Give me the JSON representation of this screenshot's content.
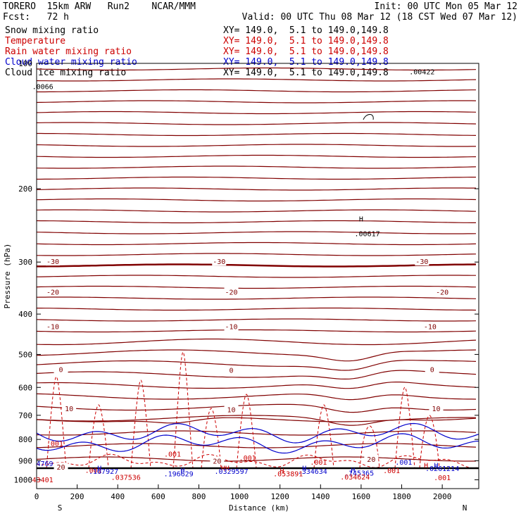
{
  "header": {
    "model": "TORERO  15km ARW   Run2    NCAR/MMM",
    "init": "Init: 00 UTC Mon 05 Mar 12",
    "fcst": "Fcst:   72 h",
    "valid": "Valid: 00 UTC Thu 08 Mar 12 (18 CST Wed 07 Mar 12)"
  },
  "legend": [
    {
      "name": "Snow mixing ratio",
      "xy": "XY= 149.0,  5.1 to 149.0,149.8",
      "color": "#000000"
    },
    {
      "name": "Temperature",
      "xy": "XY= 149.0,  5.1 to 149.0,149.8",
      "color": "#cc0000"
    },
    {
      "name": "Rain water mixing ratio",
      "xy": "XY= 149.0,  5.1 to 149.0,149.8",
      "color": "#cc0000"
    },
    {
      "name": "Cloud water mixing ratio",
      "xy": "XY= 149.0,  5.1 to 149.0,149.8",
      "color": "#0000cc"
    },
    {
      "name": "Cloud ice mixing ratio",
      "xy": "XY= 149.0,  5.1 to 149.0,149.8",
      "color": "#000000"
    }
  ],
  "chart_data": {
    "type": "contour",
    "xlabel": "Distance (km)",
    "ylabel": "Pressure (hPa)",
    "xlim": [
      0,
      2180
    ],
    "ylim": [
      100,
      1050
    ],
    "y_scale": "log",
    "x_ticks": [
      0,
      200,
      400,
      600,
      800,
      1000,
      1200,
      1400,
      1600,
      1800,
      2000
    ],
    "y_ticks": [
      100,
      200,
      300,
      400,
      500,
      600,
      700,
      800,
      900,
      1000
    ],
    "x_end_labels": {
      "left": "S",
      "right": "N"
    },
    "temperature_labels": [
      {
        "text": "-30",
        "x": 80,
        "p": 300
      },
      {
        "text": "-30",
        "x": 900,
        "p": 300
      },
      {
        "text": "-30",
        "x": 1900,
        "p": 300
      },
      {
        "text": "-20",
        "x": 80,
        "p": 355
      },
      {
        "text": "-20",
        "x": 960,
        "p": 355
      },
      {
        "text": "-20",
        "x": 2000,
        "p": 355
      },
      {
        "text": "-10",
        "x": 80,
        "p": 430
      },
      {
        "text": "-10",
        "x": 960,
        "p": 430
      },
      {
        "text": "-10",
        "x": 1940,
        "p": 430
      },
      {
        "text": "0",
        "x": 120,
        "p": 545
      },
      {
        "text": "0",
        "x": 960,
        "p": 547
      },
      {
        "text": "0",
        "x": 1950,
        "p": 545
      },
      {
        "text": "10",
        "x": 160,
        "p": 676
      },
      {
        "text": "10",
        "x": 960,
        "p": 680
      },
      {
        "text": "10",
        "x": 1970,
        "p": 676
      },
      {
        "text": "20",
        "x": 120,
        "p": 935
      },
      {
        "text": "20",
        "x": 890,
        "p": 903
      },
      {
        "text": "20",
        "x": 1650,
        "p": 895
      }
    ],
    "extrema_labels": [
      {
        "text": ".00422",
        "x": 1900,
        "p": 105,
        "color": "#000000"
      },
      {
        "text": ".0066",
        "x": 30,
        "p": 114,
        "color": "#000000"
      },
      {
        "text": "H",
        "x": 1600,
        "p": 237,
        "color": "#000000"
      },
      {
        "text": ".00617",
        "x": 1630,
        "p": 257,
        "color": "#000000"
      },
      {
        "text": ".001",
        "x": 90,
        "p": 820,
        "color": "#cc0000"
      },
      {
        "text": ".001",
        "x": 670,
        "p": 870,
        "color": "#cc0000"
      },
      {
        "text": ".001",
        "x": 1040,
        "p": 888,
        "color": "#cc0000"
      },
      {
        "text": ".001",
        "x": 1390,
        "p": 910,
        "color": "#cc0000"
      },
      {
        "text": ".001",
        "x": 1810,
        "p": 910,
        "color": "#0000cc"
      },
      {
        "text": ".001",
        "x": 280,
        "p": 950,
        "color": "#cc0000"
      },
      {
        "text": ".001",
        "x": 1750,
        "p": 952,
        "color": "#cc0000"
      },
      {
        "text": ".001",
        "x": 2000,
        "p": 990,
        "color": "#cc0000"
      },
      {
        "text": "4769",
        "x": 40,
        "p": 916,
        "color": "#0000cc"
      },
      {
        "text": "H",
        "x": 310,
        "p": 940,
        "color": "#0000cc"
      },
      {
        "text": ".167927",
        "x": 330,
        "p": 957,
        "color": "#0000cc"
      },
      {
        "text": ".037536",
        "x": 440,
        "p": 988,
        "color": "#cc0000"
      },
      {
        "text": "H",
        "x": 720,
        "p": 950,
        "color": "#0000cc"
      },
      {
        "text": ".196629",
        "x": 700,
        "p": 969,
        "color": "#0000cc"
      },
      {
        "text": "HH",
        "x": 930,
        "p": 940,
        "color": "#cc0000"
      },
      {
        "text": ".0329597",
        "x": 960,
        "p": 957,
        "color": "#0000cc"
      },
      {
        "text": "H",
        "x": 1210,
        "p": 955,
        "color": "#cc0000"
      },
      {
        "text": ".053891",
        "x": 1240,
        "p": 970,
        "color": "#cc0000"
      },
      {
        "text": "H",
        "x": 1320,
        "p": 940,
        "color": "#0000cc"
      },
      {
        "text": ".334634",
        "x": 1360,
        "p": 957,
        "color": "#0000cc"
      },
      {
        "text": "H",
        "x": 1560,
        "p": 950,
        "color": "#0000cc"
      },
      {
        "text": ".145365",
        "x": 1590,
        "p": 966,
        "color": "#0000cc"
      },
      {
        "text": ".034624",
        "x": 1570,
        "p": 987,
        "color": "#cc0000"
      },
      {
        "text": "H",
        "x": 1920,
        "p": 925,
        "color": "#cc0000"
      },
      {
        "text": "H",
        "x": 1970,
        "p": 925,
        "color": "#0000cc"
      },
      {
        "text": ".0261214",
        "x": 2000,
        "p": 942,
        "color": "#0000cc"
      },
      {
        "text": "43401",
        "x": 30,
        "p": 1002,
        "color": "#cc0000"
      }
    ]
  }
}
